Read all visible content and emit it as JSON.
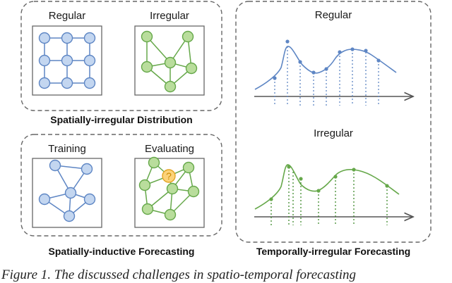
{
  "labels": {
    "regular_spatial": "Regular",
    "irregular_spatial": "Irregular",
    "training": "Training",
    "evaluating": "Evaluating",
    "regular_temporal": "Regular",
    "irregular_temporal": "Irregular",
    "question_mark": "?"
  },
  "sections": {
    "spatial_distribution": "Spatially-irregular Distribution",
    "spatial_inductive": "Spatially-inductive Forecasting",
    "temporal_irregular": "Temporally-irregular Forecasting"
  },
  "caption": {
    "prefix": "Figure 1.",
    "text": "The discussed challenges in spatio-temporal forecasting"
  },
  "colors": {
    "blue_fill": "#c3d6f0",
    "blue_stroke": "#5e86c4",
    "green_fill": "#b9dd9c",
    "green_stroke": "#66a84a",
    "highlight_fill": "#fbd27a",
    "highlight_stroke": "#e2a422",
    "dashed_border": "#666666",
    "axis": "#555555"
  },
  "icons": [
    "grid-graph",
    "irregular-graph",
    "time-series-curve",
    "arrow-axis"
  ]
}
